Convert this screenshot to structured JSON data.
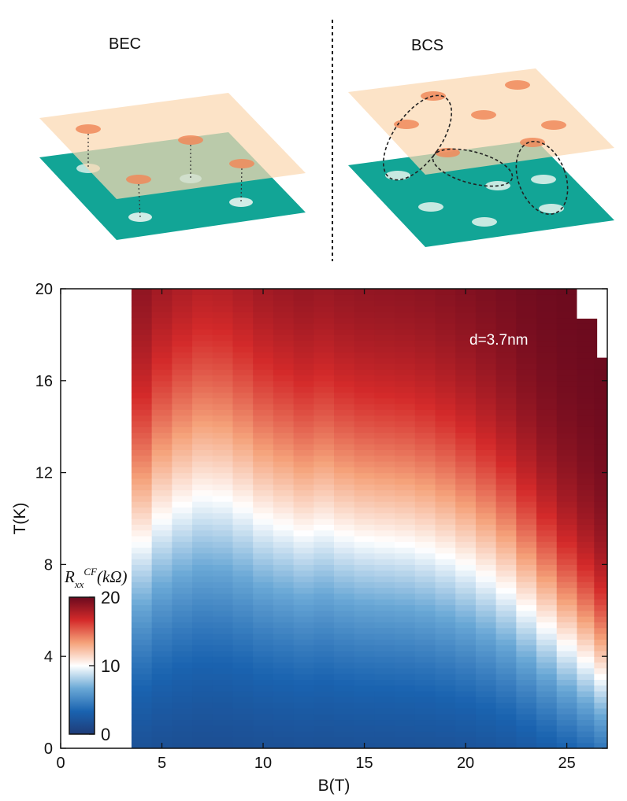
{
  "schematic": {
    "left_label": "BEC",
    "right_label": "BCS",
    "colors": {
      "top_layer": "#fbd8b2",
      "bottom_layer": "#12a596",
      "electron": "#f08a5a",
      "hole": "#e8f4ee"
    }
  },
  "chart_data": {
    "type": "heatmap",
    "title": "",
    "xlabel": "B(T)",
    "ylabel": "T(K)",
    "xlim": [
      0,
      27
    ],
    "ylim": [
      0,
      20
    ],
    "xticks": [
      0,
      5,
      10,
      15,
      20,
      25
    ],
    "yticks": [
      0,
      4,
      8,
      12,
      16,
      20
    ],
    "annotation": "d=3.7nm",
    "data_start_B": 3.5,
    "colorbar": {
      "label": "R_xx^CF (kΩ)",
      "ticks": [
        0,
        10,
        20
      ],
      "range": [
        0,
        20
      ],
      "colors": [
        "#1f3c78",
        "#1a63b0",
        "#6aa8d6",
        "#ffffff",
        "#f5a27a",
        "#d42a2a",
        "#6b0a1e"
      ]
    },
    "columns": [
      {
        "B": 4.0,
        "T_mid": 9.0
      },
      {
        "B": 5.0,
        "T_mid": 10.0
      },
      {
        "B": 6.0,
        "T_mid": 10.6
      },
      {
        "B": 7.0,
        "T_mid": 11.0
      },
      {
        "B": 8.0,
        "T_mid": 10.9
      },
      {
        "B": 9.0,
        "T_mid": 10.5
      },
      {
        "B": 10.0,
        "T_mid": 10.0
      },
      {
        "B": 11.0,
        "T_mid": 9.7
      },
      {
        "B": 12.0,
        "T_mid": 9.4
      },
      {
        "B": 13.0,
        "T_mid": 9.6
      },
      {
        "B": 14.0,
        "T_mid": 9.3
      },
      {
        "B": 15.0,
        "T_mid": 9.1
      },
      {
        "B": 16.0,
        "T_mid": 9.0
      },
      {
        "B": 17.0,
        "T_mid": 8.9
      },
      {
        "B": 18.0,
        "T_mid": 8.7
      },
      {
        "B": 19.0,
        "T_mid": 8.4
      },
      {
        "B": 20.0,
        "T_mid": 8.0
      },
      {
        "B": 21.0,
        "T_mid": 7.5
      },
      {
        "B": 22.0,
        "T_mid": 6.9
      },
      {
        "B": 23.0,
        "T_mid": 6.1
      },
      {
        "B": 24.0,
        "T_mid": 5.3
      },
      {
        "B": 25.0,
        "T_mid": 4.5
      },
      {
        "B": 26.0,
        "T_mid": 3.8
      },
      {
        "B": 26.7,
        "T_mid": 3.1
      }
    ]
  }
}
